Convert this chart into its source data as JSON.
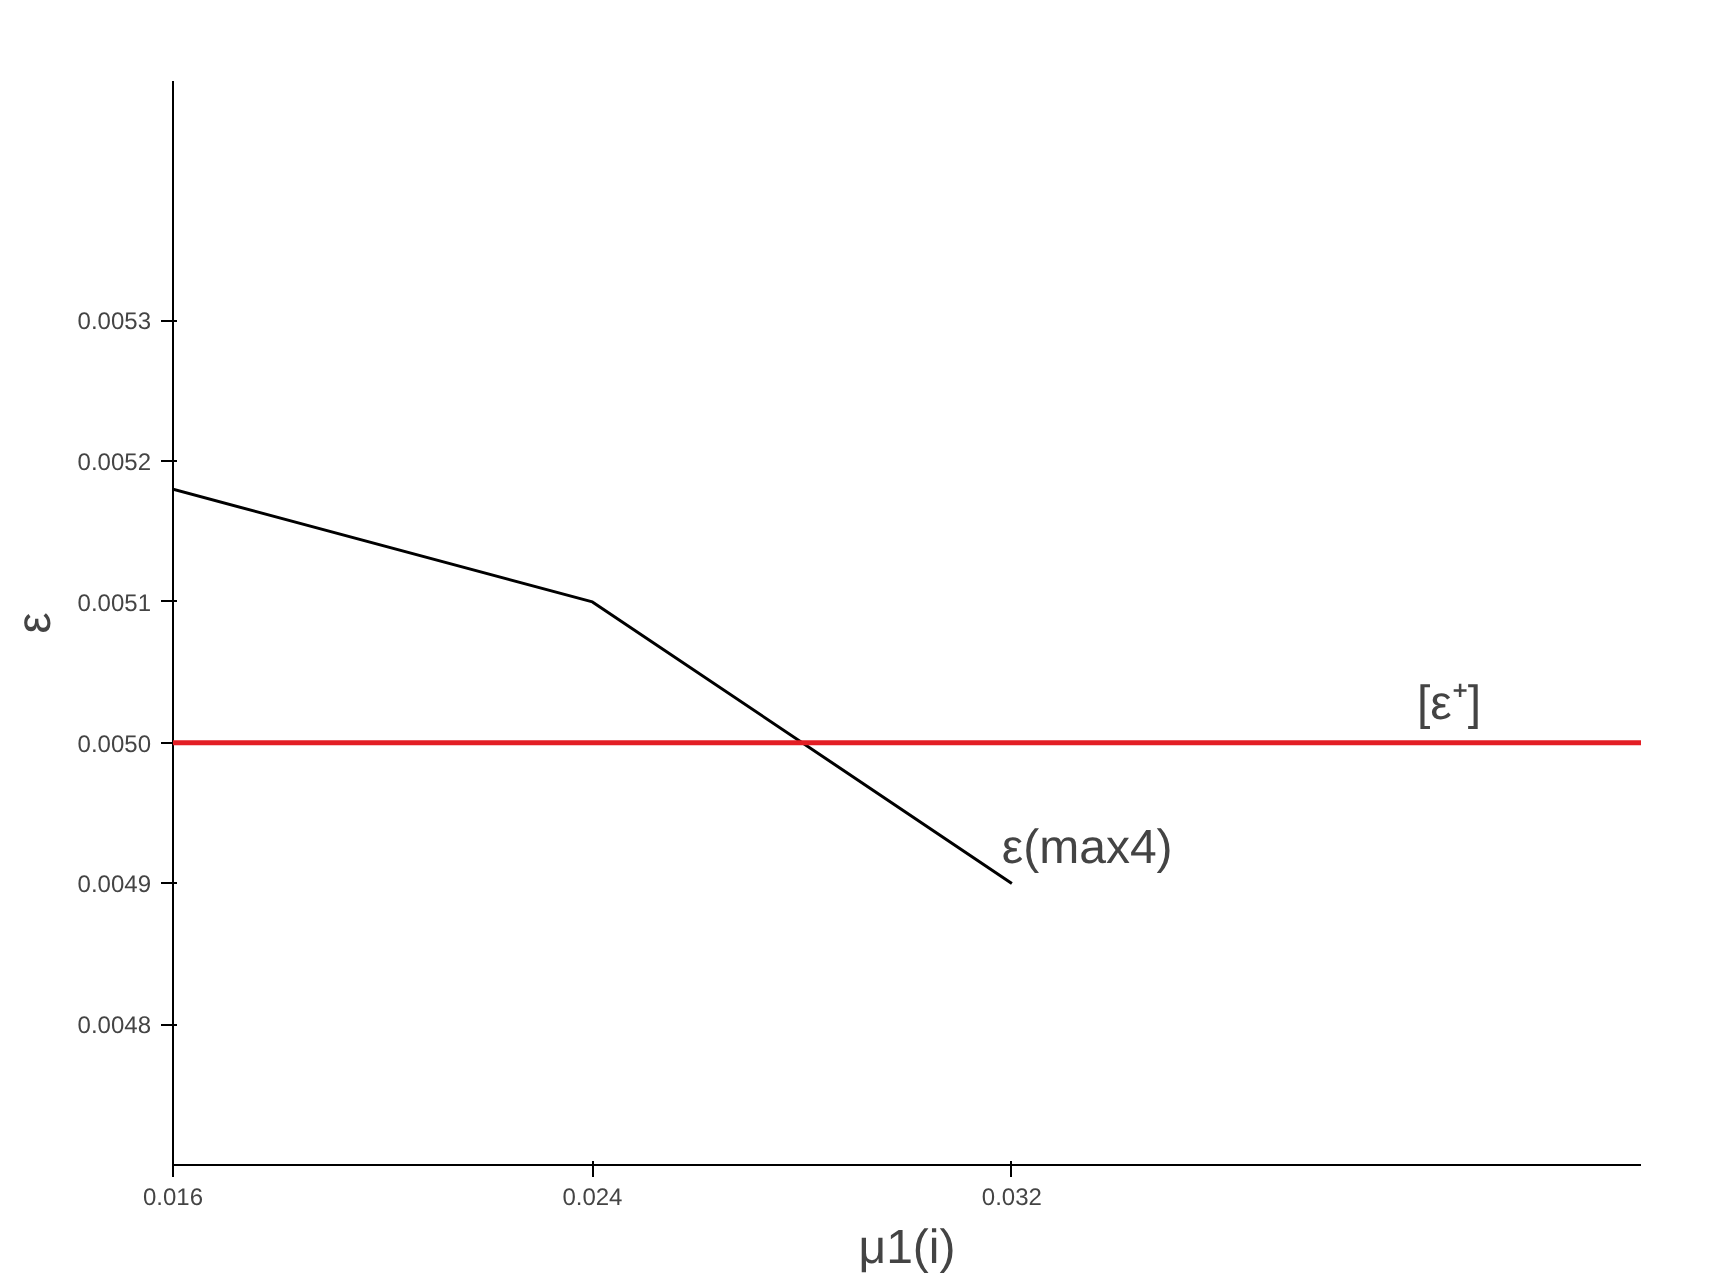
{
  "chart_data": {
    "type": "line",
    "x": [
      0.016,
      0.024,
      0.032
    ],
    "series": [
      {
        "color": "#000000",
        "values": [
          0.00518,
          0.0051,
          0.0049
        ]
      }
    ],
    "xlabel": "μ1(i)",
    "ylabel": "ε",
    "xlim": [
      0.016,
      0.044
    ],
    "ylim": [
      0.0047,
      0.00547
    ],
    "xticks": [
      0.016,
      0.024,
      0.032
    ],
    "yticks": [
      0.0048,
      0.0049,
      {
        "value": 0.005,
        "label": "0.0050"
      },
      0.0051,
      0.0052,
      0.0053
    ],
    "ref_lines": [
      {
        "axis": "y",
        "value": 0.005,
        "label": "[ε⁺]",
        "color": "#e31e24"
      }
    ],
    "annotations": [
      {
        "text": "ε(max4)",
        "x": 0.032,
        "y": 0.0049
      }
    ],
    "grid": false,
    "marker": "none",
    "line_style": "solid"
  }
}
